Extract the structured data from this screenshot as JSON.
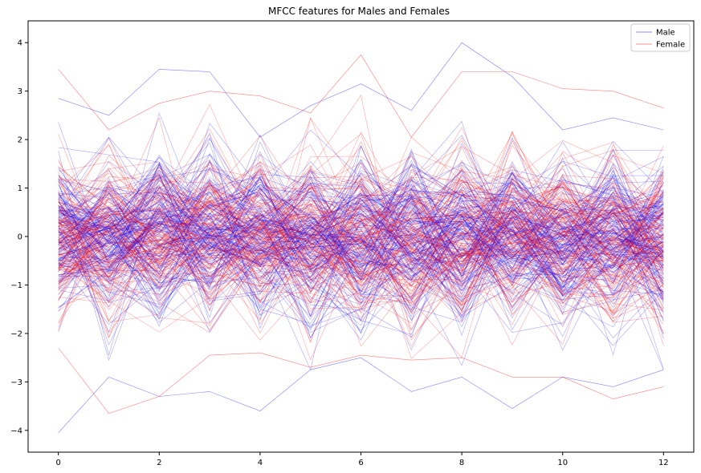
{
  "chart_data": {
    "type": "line",
    "title": "MFCC features for Males and Females",
    "xlabel": "",
    "ylabel": "",
    "xlim": [
      -0.6,
      12.6
    ],
    "ylim": [
      -4.45,
      4.45
    ],
    "x_ticks": [
      0,
      2,
      4,
      6,
      8,
      10,
      12
    ],
    "y_ticks": [
      -4,
      -3,
      -2,
      -1,
      0,
      1,
      2,
      3,
      4
    ],
    "x_tick_labels": [
      "0",
      "2",
      "4",
      "6",
      "8",
      "10",
      "12"
    ],
    "y_tick_labels": [
      "−4",
      "−3",
      "−2",
      "−1",
      "0",
      "1",
      "2",
      "3",
      "4"
    ],
    "grid": false,
    "legend_position": "top-right",
    "x": [
      0,
      1,
      2,
      3,
      4,
      5,
      6,
      7,
      8,
      9,
      10,
      11,
      12
    ],
    "series": [
      {
        "name": "Male",
        "color": "#0000ff",
        "line_count": 150,
        "envelope_max": [
          2.9,
          2.55,
          3.45,
          3.45,
          2.1,
          2.75,
          3.2,
          2.65,
          4.0,
          3.3,
          2.25,
          2.5,
          2.25
        ],
        "envelope_min": [
          -4.05,
          -2.9,
          -3.3,
          -3.2,
          -3.6,
          -2.75,
          -2.5,
          -3.2,
          -2.9,
          -3.55,
          -2.9,
          -3.1,
          -2.75
        ],
        "sample_lines": [
          [
            2.85,
            2.5,
            3.45,
            3.4,
            2.05,
            2.7,
            3.15,
            2.6,
            4.0,
            3.3,
            2.2,
            2.45,
            2.2
          ],
          [
            -4.05,
            -2.9,
            -3.3,
            -3.2,
            -3.6,
            -2.75,
            -2.5,
            -3.2,
            -2.9,
            -3.55,
            -2.9,
            -3.1,
            -2.75
          ]
        ]
      },
      {
        "name": "Female",
        "color": "#ff0000",
        "line_count": 150,
        "envelope_max": [
          3.45,
          2.2,
          2.75,
          3.0,
          2.9,
          2.55,
          3.75,
          2.05,
          3.4,
          3.4,
          3.05,
          3.0,
          2.65
        ],
        "envelope_min": [
          -2.3,
          -3.65,
          -3.3,
          -2.45,
          -2.4,
          -2.7,
          -2.45,
          -2.55,
          -2.5,
          -2.9,
          -2.9,
          -3.35,
          -3.1
        ],
        "sample_lines": [
          [
            3.45,
            2.2,
            2.75,
            3.0,
            2.9,
            2.55,
            3.75,
            2.05,
            3.4,
            3.4,
            3.05,
            3.0,
            2.65
          ],
          [
            -2.3,
            -3.65,
            -3.3,
            -2.45,
            -2.4,
            -2.7,
            -2.45,
            -2.55,
            -2.5,
            -2.9,
            -2.9,
            -3.35,
            -3.1
          ]
        ]
      }
    ],
    "line_opacity": 0.35
  }
}
